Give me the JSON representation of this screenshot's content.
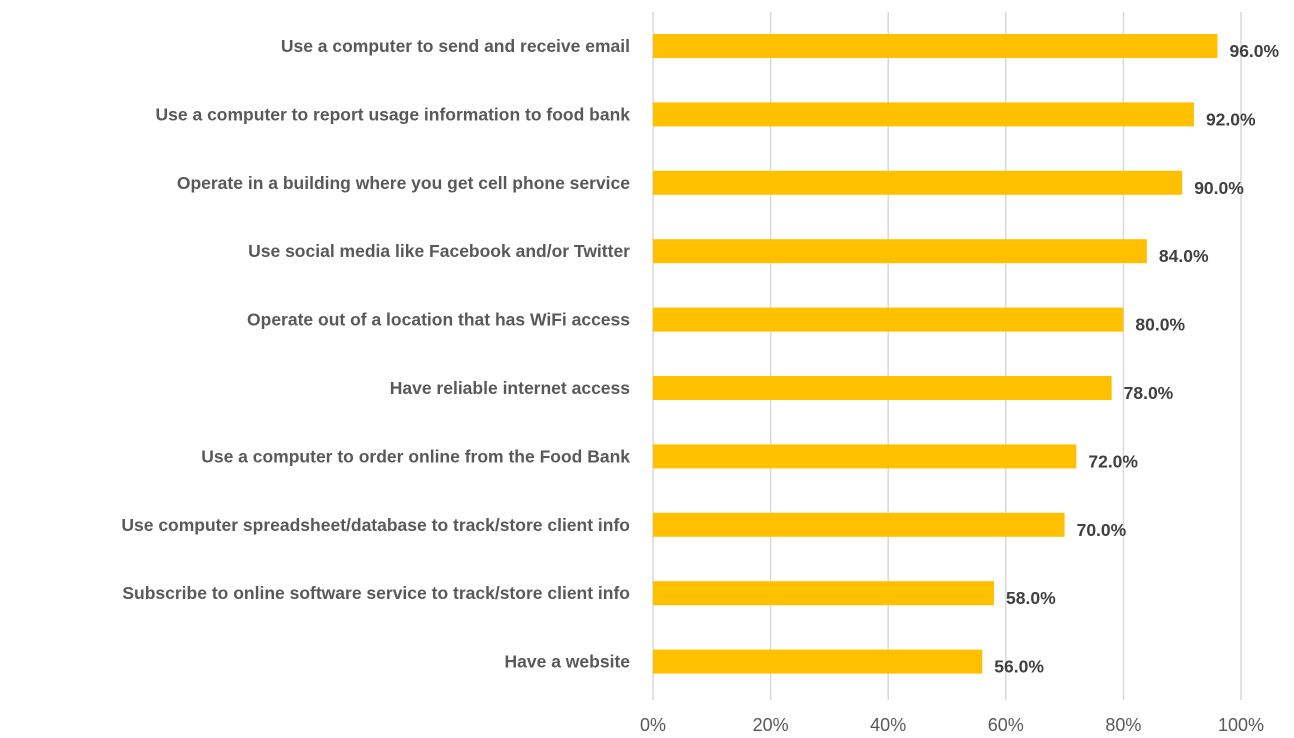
{
  "chart_data": {
    "type": "bar",
    "orientation": "horizontal",
    "title": "",
    "xlabel": "",
    "ylabel": "",
    "categories": [
      "Use a computer to send and receive email",
      "Use a computer to report usage information to food bank",
      "Operate in a building where you get cell phone service",
      "Use social media like Facebook and/or Twitter",
      "Operate out of a location that has WiFi access",
      "Have reliable internet access",
      "Use a computer to order online from the Food Bank",
      "Use computer spreadsheet/database to track/store client info",
      "Subscribe to online software service to track/store client info",
      "Have a website"
    ],
    "values": [
      96.0,
      92.0,
      90.0,
      84.0,
      80.0,
      78.0,
      72.0,
      70.0,
      58.0,
      56.0
    ],
    "value_labels": [
      "96.0%",
      "92.0%",
      "90.0%",
      "84.0%",
      "80.0%",
      "78.0%",
      "72.0%",
      "70.0%",
      "58.0%",
      "56.0%"
    ],
    "x_ticks": [
      "0%",
      "20%",
      "40%",
      "60%",
      "80%",
      "100%"
    ],
    "x_tick_values": [
      0,
      20,
      40,
      60,
      80,
      100
    ],
    "xlim": [
      0,
      100
    ],
    "grid": true,
    "legend": "none",
    "bar_color": "#FFC000",
    "grid_color": "#D9D9D9"
  }
}
